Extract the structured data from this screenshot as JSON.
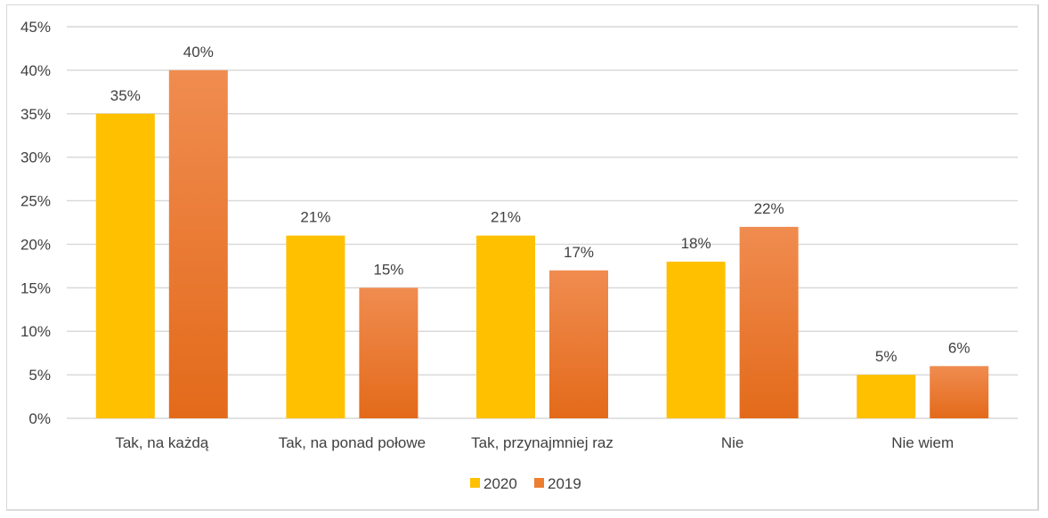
{
  "chart_data": {
    "type": "bar",
    "title": "",
    "xlabel": "",
    "ylabel": "",
    "ylim": [
      0,
      45
    ],
    "y_ticks": [
      "0%",
      "5%",
      "10%",
      "15%",
      "20%",
      "25%",
      "30%",
      "35%",
      "40%",
      "45%"
    ],
    "y_tick_values": [
      0,
      5,
      10,
      15,
      20,
      25,
      30,
      35,
      40,
      45
    ],
    "grid": true,
    "legend_position": "bottom",
    "categories": [
      "Tak, na każdą",
      "Tak, na ponad połowe",
      "Tak, przynajmniej raz",
      "Nie",
      "Nie wiem"
    ],
    "series": [
      {
        "name": "2020",
        "color": "#FFC000",
        "values": [
          35,
          21,
          21,
          18,
          5
        ],
        "labels": [
          "35%",
          "21%",
          "21%",
          "18%",
          "5%"
        ]
      },
      {
        "name": "2019",
        "color": "#ED7D31",
        "gradient_top": "#F08C50",
        "gradient_bottom": "#E36A1A",
        "values": [
          40,
          15,
          17,
          22,
          6
        ],
        "labels": [
          "40%",
          "15%",
          "17%",
          "22%",
          "6%"
        ]
      }
    ]
  }
}
